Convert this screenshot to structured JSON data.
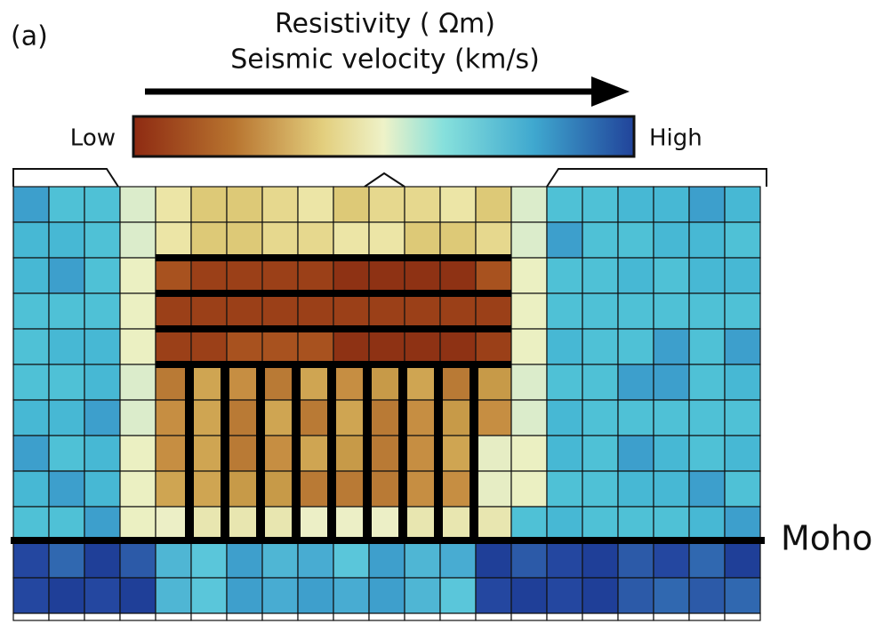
{
  "panel_label": "(a)",
  "colorbar": {
    "title_lines": [
      "Resistivity ( Ωm)",
      "Seismic velocity (km/s)"
    ],
    "low_label": "Low",
    "high_label": "High"
  },
  "boundary_label": "Moho"
}
